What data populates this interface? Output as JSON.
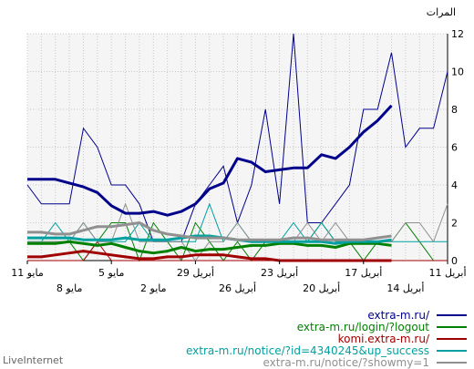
{
  "chart_data": {
    "type": "line",
    "ylabel": "المرات",
    "ylim": [
      0,
      12
    ],
    "yticks": [
      0,
      2,
      4,
      6,
      8,
      10,
      12
    ],
    "grid": true,
    "legend_position": "bottom-right",
    "x_tick_labels_top": [
      "11 مايو",
      "5 مايو",
      "29 أبريل",
      "23 أبريل",
      "17 أبريل",
      "11 أبريل"
    ],
    "x_tick_labels_bottom": [
      "8 مايو",
      "2 مايو",
      "26 أبريل",
      "20 أبريل",
      "14 أبريل"
    ],
    "series": [
      {
        "name": "extra-m.ru/",
        "color": "#00008b",
        "thin": [
          4,
          3,
          3,
          3,
          7,
          6,
          4,
          4,
          3,
          1,
          1,
          1,
          3,
          4,
          5,
          2,
          4,
          8,
          3,
          12,
          2,
          2,
          3,
          4,
          8,
          8,
          11,
          6,
          7,
          7,
          10
        ],
        "avg": [
          4.3,
          4.3,
          4.3,
          4.1,
          3.9,
          3.6,
          2.9,
          2.5,
          2.5,
          2.6,
          2.4,
          2.6,
          3.0,
          3.8,
          4.1,
          5.4,
          5.2,
          4.7,
          4.8,
          4.9,
          4.9,
          5.6,
          5.4,
          6.0,
          6.8,
          7.4,
          8.2
        ]
      },
      {
        "name": "extra-m.ru/login/?logout",
        "color": "#008000",
        "thin": [
          1,
          1,
          1,
          1,
          0,
          1,
          2,
          2,
          0,
          2,
          1,
          0,
          2,
          1,
          0,
          1,
          0,
          1,
          1,
          1,
          1,
          2,
          1,
          1,
          0,
          1,
          1,
          2,
          1,
          0,
          0
        ],
        "avg": [
          0.9,
          0.9,
          0.9,
          1.0,
          0.9,
          0.8,
          0.9,
          0.7,
          0.5,
          0.4,
          0.5,
          0.7,
          0.5,
          0.6,
          0.6,
          0.7,
          0.8,
          0.8,
          0.9,
          0.9,
          0.8,
          0.8,
          0.7,
          0.9,
          0.9,
          0.9,
          0.8
        ]
      },
      {
        "name": "komi.extra-m.ru/",
        "color": "#a00000",
        "thin": [
          0,
          0,
          0,
          0,
          0,
          1,
          0,
          0,
          0,
          0,
          0,
          0,
          0,
          0,
          0,
          0,
          0,
          0,
          0,
          0,
          0,
          0,
          0,
          0,
          0,
          0,
          0,
          0,
          0,
          0,
          0
        ],
        "avg": [
          0.2,
          0.2,
          0.3,
          0.4,
          0.5,
          0.4,
          0.3,
          0.2,
          0.1,
          0.1,
          0.2,
          0.2,
          0.3,
          0.3,
          0.3,
          0.2,
          0.1,
          0.1,
          0.0,
          0.0,
          0.0,
          0.0,
          0.0,
          0.0,
          0.0,
          0.0,
          0.0
        ]
      },
      {
        "name": "extra-m.ru/notice/?id=4340245&up_success",
        "color": "#00a0a0",
        "thin": [
          1,
          1,
          2,
          1,
          2,
          1,
          1,
          1,
          2,
          1,
          1,
          1,
          1,
          3,
          1,
          2,
          1,
          1,
          1,
          2,
          1,
          2,
          1,
          1,
          1,
          1,
          1,
          1,
          1,
          1,
          1
        ],
        "avg": [
          1.2,
          1.2,
          1.2,
          1.2,
          1.1,
          1.1,
          1.1,
          1.2,
          1.1,
          1.1,
          1.1,
          1.2,
          1.3,
          1.3,
          1.2,
          1.1,
          1.0,
          1.0,
          1.0,
          1.0,
          1.0,
          1.0,
          0.9,
          1.0,
          1.0,
          1.0,
          1.1
        ]
      },
      {
        "name": "extra-m.ru/notice/?showmy=1",
        "color": "#909090",
        "thin": [
          1,
          1,
          1,
          1,
          2,
          1,
          1,
          3,
          1,
          1,
          1,
          1,
          0,
          1,
          1,
          2,
          1,
          1,
          1,
          1,
          2,
          1,
          2,
          1,
          1,
          1,
          1,
          2,
          2,
          1,
          3
        ],
        "avg": [
          1.5,
          1.5,
          1.4,
          1.4,
          1.6,
          1.8,
          1.8,
          1.9,
          2.0,
          1.6,
          1.4,
          1.3,
          1.2,
          1.2,
          1.2,
          1.1,
          1.1,
          1.1,
          1.1,
          1.2,
          1.2,
          1.1,
          1.1,
          1.1,
          1.1,
          1.2,
          1.3
        ]
      }
    ]
  },
  "branding": {
    "watermark": "LiveInternet"
  }
}
